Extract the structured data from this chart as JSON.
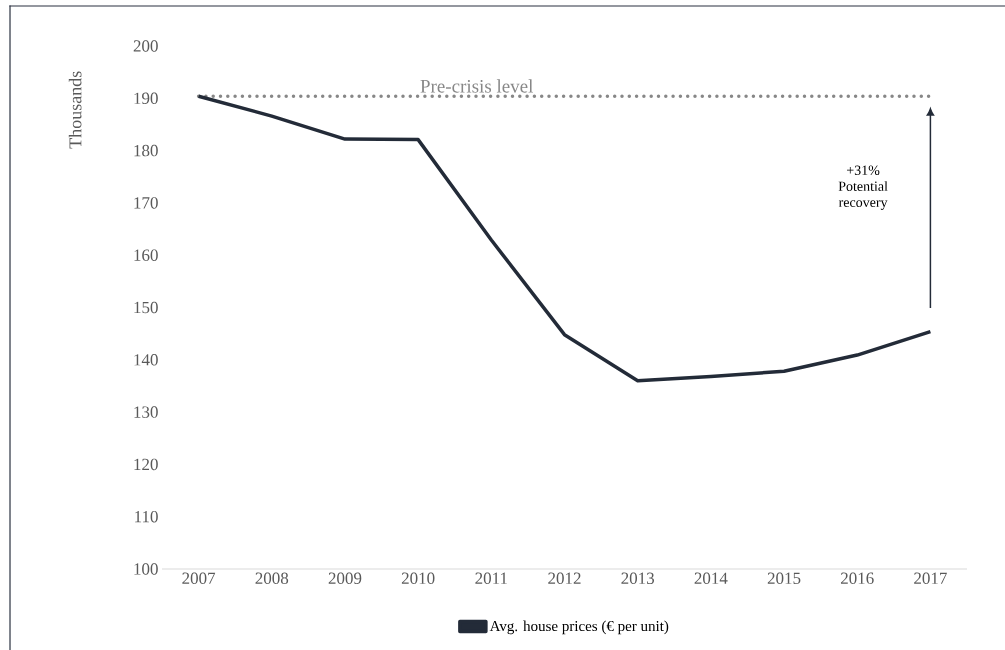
{
  "chart_data": {
    "type": "line",
    "ylabel": "Thousands",
    "categories": [
      "2007",
      "2008",
      "2009",
      "2010",
      "2011",
      "2012",
      "2013",
      "2014",
      "2015",
      "2016",
      "2017"
    ],
    "series": [
      {
        "name": "Avg. house prices (€ per unit)",
        "color": "#232b38",
        "values": [
          190.4,
          186.6,
          182.2,
          182.1,
          162.9,
          144.8,
          136.0,
          136.8,
          137.8,
          140.9,
          145.4
        ]
      }
    ],
    "ylim": [
      100,
      200
    ],
    "yticks": [
      100,
      110,
      120,
      130,
      140,
      150,
      160,
      170,
      180,
      190,
      200
    ],
    "ref_lines": [
      {
        "axis": "y",
        "value": 190.4,
        "label": "Pre-crisis level",
        "color": "#878787",
        "line_style": "dotted"
      }
    ],
    "annotations": [
      "+31% Potential recovery"
    ],
    "legend": "bottom",
    "grid": false,
    "marker": "none",
    "line_style": "solid"
  }
}
